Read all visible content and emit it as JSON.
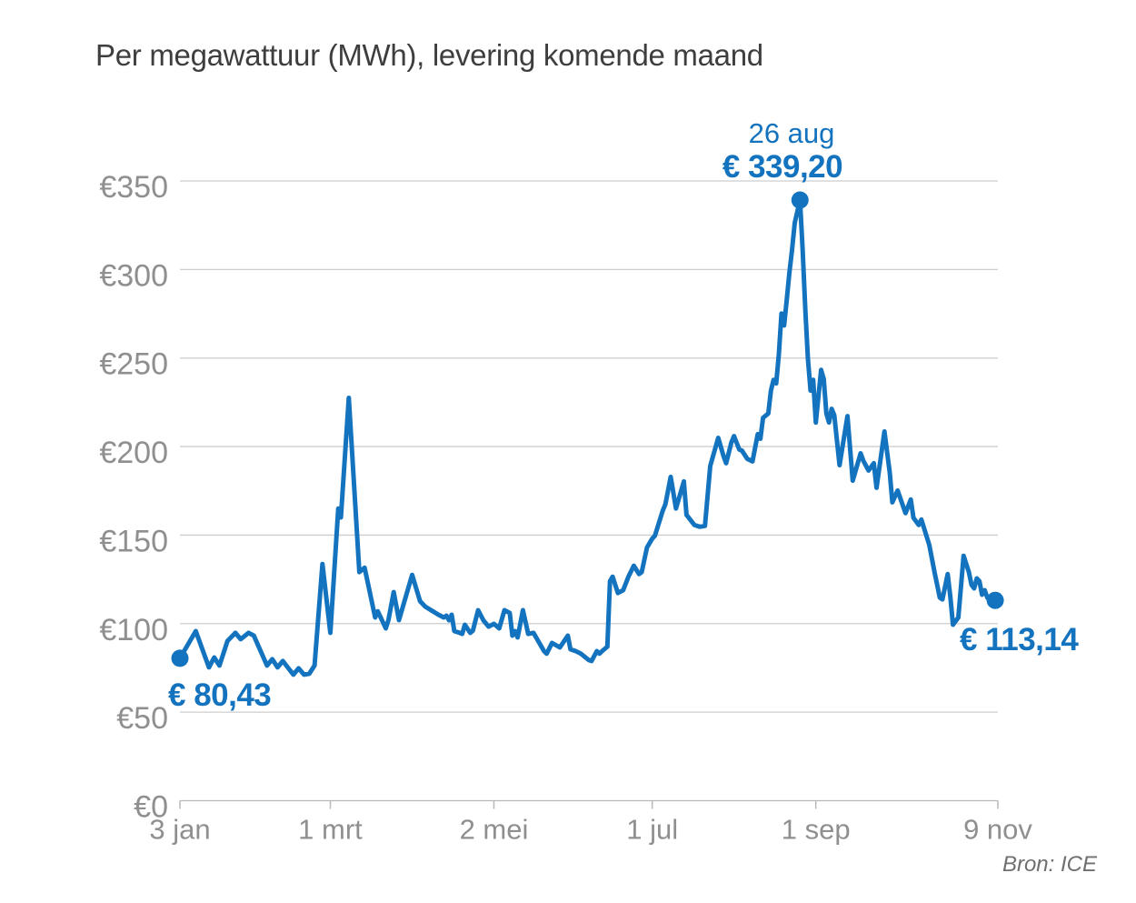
{
  "chart_data": {
    "type": "line",
    "title": "Per megawattuur (MWh), levering komende maand",
    "source": "Bron: ICE",
    "x_axis": {
      "range": [
        0,
        310
      ],
      "ticks": [
        {
          "day": 0,
          "label": "3 jan"
        },
        {
          "day": 57,
          "label": "1 mrt"
        },
        {
          "day": 119,
          "label": "2 mei"
        },
        {
          "day": 179,
          "label": "1 jul"
        },
        {
          "day": 241,
          "label": "1 sep"
        },
        {
          "day": 310,
          "label": "9 nov"
        }
      ]
    },
    "y_axis": {
      "range": [
        0,
        350
      ],
      "ticks": [
        {
          "value": 0,
          "label": "€0"
        },
        {
          "value": 50,
          "label": "€50"
        },
        {
          "value": 100,
          "label": "€100"
        },
        {
          "value": 150,
          "label": "€150"
        },
        {
          "value": 200,
          "label": "€200"
        },
        {
          "value": 250,
          "label": "€250"
        },
        {
          "value": 300,
          "label": "€300"
        },
        {
          "value": 350,
          "label": "€350"
        }
      ]
    },
    "annotations": {
      "start": {
        "label": "€ 80,43",
        "day": 0,
        "value": 80.43
      },
      "peak": {
        "date_label": "26 aug",
        "label": "€ 339,20",
        "day": 235,
        "value": 339.2
      },
      "end": {
        "label": "€ 113,14",
        "day": 309,
        "value": 113.14
      }
    },
    "colors": {
      "line": "#1473be",
      "grid": "#cdcdcd",
      "axis": "#b9b9b9",
      "tick_text": "#8f8f8f",
      "title_text": "#3e3e3e",
      "source_text": "#6f6f6f"
    },
    "series": {
      "points": [
        [
          0,
          80.43
        ],
        [
          6,
          95.8
        ],
        [
          11,
          75.3
        ],
        [
          13,
          80.9
        ],
        [
          15,
          76.3
        ],
        [
          18,
          90.2
        ],
        [
          21,
          94.8
        ],
        [
          23,
          91.2
        ],
        [
          26,
          94.8
        ],
        [
          28,
          93.2
        ],
        [
          33,
          76.3
        ],
        [
          35,
          79.9
        ],
        [
          37,
          75.3
        ],
        [
          39,
          78.9
        ],
        [
          43,
          71.2
        ],
        [
          45,
          74.8
        ],
        [
          47,
          71.2
        ],
        [
          49,
          71.7
        ],
        [
          51,
          76.3
        ],
        [
          54,
          133.7
        ],
        [
          57,
          94.8
        ],
        [
          60,
          165
        ],
        [
          61,
          160
        ],
        [
          64,
          227.5
        ],
        [
          68,
          129.1
        ],
        [
          70,
          131.6
        ],
        [
          74,
          103.5
        ],
        [
          75,
          107
        ],
        [
          78,
          97.3
        ],
        [
          79,
          102
        ],
        [
          81,
          117.8
        ],
        [
          83,
          102
        ],
        [
          88,
          127.5
        ],
        [
          91,
          112.7
        ],
        [
          93,
          109.6
        ],
        [
          98,
          105
        ],
        [
          100,
          103.5
        ],
        [
          101,
          104.5
        ],
        [
          102,
          101.9
        ],
        [
          103,
          105
        ],
        [
          104,
          95.8
        ],
        [
          106,
          94.8
        ],
        [
          107,
          94.2
        ],
        [
          108,
          99.4
        ],
        [
          110,
          94.8
        ],
        [
          111,
          96
        ],
        [
          113,
          107.6
        ],
        [
          115,
          101.9
        ],
        [
          117,
          98.3
        ],
        [
          119,
          99.9
        ],
        [
          121,
          97.3
        ],
        [
          123,
          107.6
        ],
        [
          125,
          106
        ],
        [
          126,
          93.2
        ],
        [
          127,
          95.8
        ],
        [
          128,
          92.2
        ],
        [
          130,
          107.6
        ],
        [
          132,
          94.2
        ],
        [
          134,
          94.8
        ],
        [
          138,
          84.5
        ],
        [
          139,
          83
        ],
        [
          141,
          89.1
        ],
        [
          144,
          86.6
        ],
        [
          147,
          93.2
        ],
        [
          148,
          85.5
        ],
        [
          150,
          84.5
        ],
        [
          152,
          83
        ],
        [
          155,
          79.4
        ],
        [
          156,
          78.9
        ],
        [
          158,
          84.5
        ],
        [
          159,
          83
        ],
        [
          160,
          84.5
        ],
        [
          162,
          87
        ],
        [
          163,
          124
        ],
        [
          164,
          126.5
        ],
        [
          166,
          117.3
        ],
        [
          168,
          118.9
        ],
        [
          170,
          126.5
        ],
        [
          172,
          132.7
        ],
        [
          174,
          128
        ],
        [
          175,
          129.1
        ],
        [
          177,
          143
        ],
        [
          179,
          148
        ],
        [
          180,
          149.6
        ],
        [
          183,
          163.9
        ],
        [
          184,
          167.5
        ],
        [
          186,
          182.9
        ],
        [
          188,
          165
        ],
        [
          191,
          180.3
        ],
        [
          192,
          161.4
        ],
        [
          195,
          155.7
        ],
        [
          197,
          154.7
        ],
        [
          199,
          155.2
        ],
        [
          201,
          189
        ],
        [
          204,
          204.9
        ],
        [
          206,
          194.7
        ],
        [
          207,
          190.6
        ],
        [
          209,
          202.4
        ],
        [
          210,
          205.9
        ],
        [
          212,
          198.3
        ],
        [
          213,
          197.7
        ],
        [
          215,
          193.1
        ],
        [
          217,
          191.6
        ],
        [
          219,
          207
        ],
        [
          220,
          204.4
        ],
        [
          221,
          216.2
        ],
        [
          223,
          218.7
        ],
        [
          224,
          231.6
        ],
        [
          225,
          237.7
        ],
        [
          226,
          235.7
        ],
        [
          227,
          252.1
        ],
        [
          228,
          275.1
        ],
        [
          229,
          268.4
        ],
        [
          230,
          282.8
        ],
        [
          231,
          298.2
        ],
        [
          232,
          311
        ],
        [
          233,
          326.3
        ],
        [
          235,
          339.2
        ],
        [
          236,
          311
        ],
        [
          237,
          277.7
        ],
        [
          238,
          249.5
        ],
        [
          239,
          231.6
        ],
        [
          240,
          237.7
        ],
        [
          241,
          213.6
        ],
        [
          243,
          243.3
        ],
        [
          244,
          238.2
        ],
        [
          245,
          218.7
        ],
        [
          246,
          213.6
        ],
        [
          247,
          221.3
        ],
        [
          248,
          217.7
        ],
        [
          250,
          189.5
        ],
        [
          253,
          217.2
        ],
        [
          255,
          180.8
        ],
        [
          258,
          196.2
        ],
        [
          259,
          192.1
        ],
        [
          261,
          186.5
        ],
        [
          263,
          190.6
        ],
        [
          264,
          176.7
        ],
        [
          267,
          208.5
        ],
        [
          269,
          185.5
        ],
        [
          270,
          168.5
        ],
        [
          272,
          175.2
        ],
        [
          275,
          162.4
        ],
        [
          277,
          170.1
        ],
        [
          278,
          159.8
        ],
        [
          280,
          155.7
        ],
        [
          281,
          158.8
        ],
        [
          284,
          144.5
        ],
        [
          286,
          129.1
        ],
        [
          288,
          114.7
        ],
        [
          289,
          113.7
        ],
        [
          291,
          128
        ],
        [
          292,
          115.2
        ],
        [
          293,
          99.4
        ],
        [
          295,
          103.5
        ],
        [
          297,
          138.3
        ],
        [
          299,
          129.1
        ],
        [
          300,
          121.9
        ],
        [
          301,
          119.9
        ],
        [
          302,
          125.5
        ],
        [
          303,
          124
        ],
        [
          304,
          116.3
        ],
        [
          305,
          118.9
        ],
        [
          306,
          114.7
        ],
        [
          307,
          113.2
        ],
        [
          309,
          113.14
        ]
      ]
    }
  }
}
